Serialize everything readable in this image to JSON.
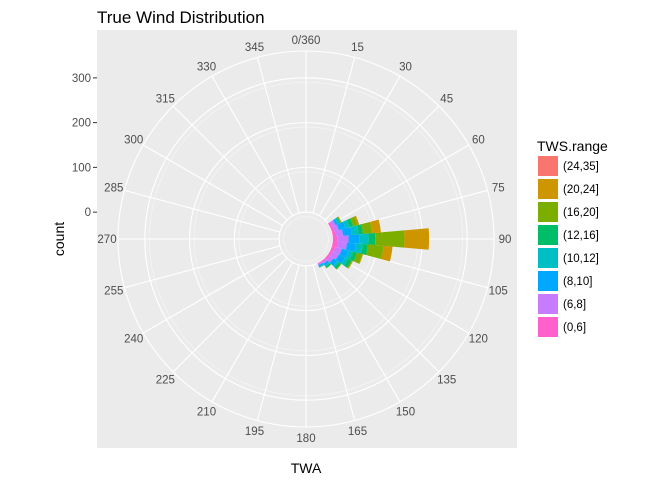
{
  "chart_data": {
    "type": "polar-stacked-bar",
    "title": "True Wind Distribution",
    "xlabel": "TWA",
    "ylabel": "count",
    "angle_ticks": [
      "0/360",
      "15",
      "30",
      "45",
      "60",
      "75",
      "90",
      "105",
      "120",
      "135",
      "150",
      "165",
      "180",
      "195",
      "210",
      "225",
      "240",
      "255",
      "270",
      "285",
      "300",
      "315",
      "330",
      "345"
    ],
    "radial_ticks": [
      "0",
      "100",
      "200",
      "300"
    ],
    "radial_lim": [
      -60,
      360
    ],
    "bin_width_deg": 10,
    "legend": {
      "title": "TWS.range",
      "position": "right",
      "items": [
        {
          "label": "(24,35]",
          "color": "#F8766D"
        },
        {
          "label": "(20,24]",
          "color": "#CD9600"
        },
        {
          "label": "(16,20]",
          "color": "#7CAE00"
        },
        {
          "label": "(12,16]",
          "color": "#00BE67"
        },
        {
          "label": "(10,12]",
          "color": "#00BFC4"
        },
        {
          "label": "(8,10]",
          "color": "#00A9FF"
        },
        {
          "label": "(6,8]",
          "color": "#C77CFF"
        },
        {
          "label": "(0,6]",
          "color": "#FF61CC"
        }
      ]
    },
    "categories_deg": [
      60,
      70,
      80,
      90,
      100,
      110,
      120,
      130,
      140,
      150
    ],
    "series": [
      {
        "name": "(0,6]",
        "values": [
          5,
          6,
          8,
          10,
          12,
          8,
          6,
          5,
          3,
          2
        ]
      },
      {
        "name": "(6,8]",
        "values": [
          8,
          10,
          15,
          25,
          20,
          15,
          15,
          10,
          5,
          3
        ]
      },
      {
        "name": "(8,10]",
        "values": [
          5,
          15,
          20,
          25,
          20,
          15,
          15,
          10,
          5,
          3
        ]
      },
      {
        "name": "(10,12]",
        "values": [
          5,
          10,
          15,
          20,
          15,
          10,
          8,
          5,
          3,
          2
        ]
      },
      {
        "name": "(12,16]",
        "values": [
          2,
          8,
          10,
          15,
          12,
          10,
          8,
          5,
          3,
          1
        ]
      },
      {
        "name": "(16,20]",
        "values": [
          2,
          10,
          20,
          65,
          35,
          12,
          3,
          2,
          1,
          0
        ]
      },
      {
        "name": "(20,24]",
        "values": [
          1,
          4,
          20,
          55,
          20,
          2,
          1,
          0,
          0,
          0
        ]
      },
      {
        "name": "(24,35]",
        "values": [
          0,
          0,
          0,
          0,
          0,
          0,
          0,
          0,
          0,
          0
        ]
      }
    ]
  }
}
